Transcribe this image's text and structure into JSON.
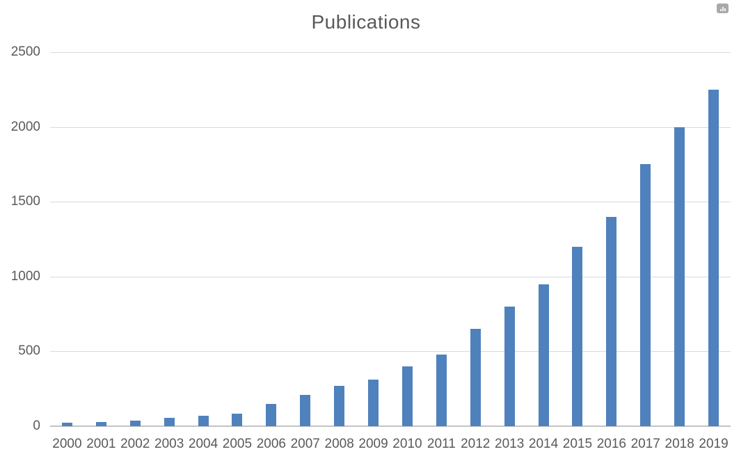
{
  "chart_data": {
    "type": "bar",
    "title": "Publications",
    "categories": [
      "2000",
      "2001",
      "2002",
      "2003",
      "2004",
      "2005",
      "2006",
      "2007",
      "2008",
      "2009",
      "2010",
      "2011",
      "2012",
      "2013",
      "2014",
      "2015",
      "2016",
      "2017",
      "2018",
      "2019"
    ],
    "values": [
      25,
      30,
      35,
      55,
      70,
      85,
      150,
      210,
      270,
      310,
      400,
      480,
      650,
      800,
      950,
      1200,
      1400,
      1750,
      2000,
      2250
    ],
    "xlabel": "",
    "ylabel": "",
    "ylim": [
      0,
      2500
    ],
    "yticks": [
      0,
      500,
      1000,
      1500,
      2000,
      2500
    ],
    "grid": "horizontal",
    "legend": "none",
    "colors": {
      "bar": "#4F81BD",
      "gridline": "#D9D9D9",
      "axis_line": "#C3C3C3",
      "text": "#595959"
    }
  },
  "toolbar": {
    "chart_button_icon": "bar-chart-icon"
  }
}
